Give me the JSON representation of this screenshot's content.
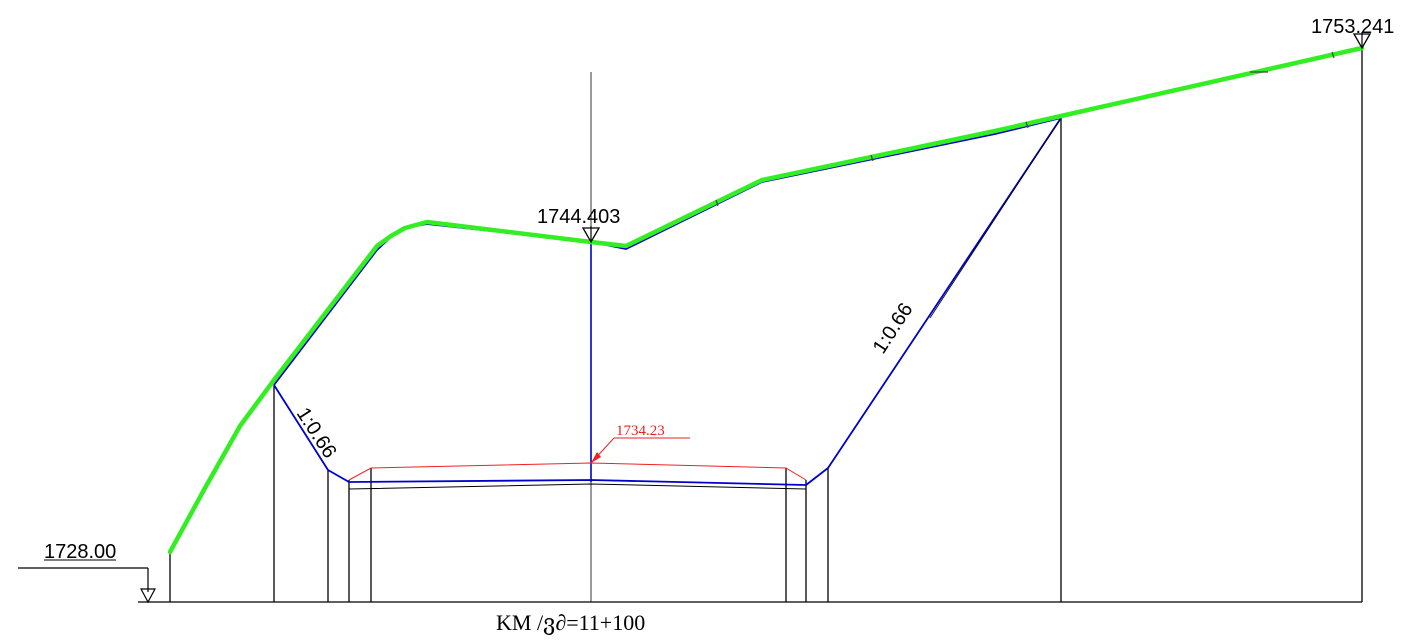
{
  "elevations": {
    "left_ground": "1728.00",
    "crown_surface": "1744.403",
    "right_top": "1753.241",
    "design_level": "1734.23"
  },
  "slopes": {
    "left": "1:0.66",
    "right": "1:0.66"
  },
  "station": "KM /ვ∂=11+100",
  "colors": {
    "ground_line": "#33ee22",
    "excavation": "#0000cc",
    "design": "#ee2222",
    "construction": "#000000"
  }
}
